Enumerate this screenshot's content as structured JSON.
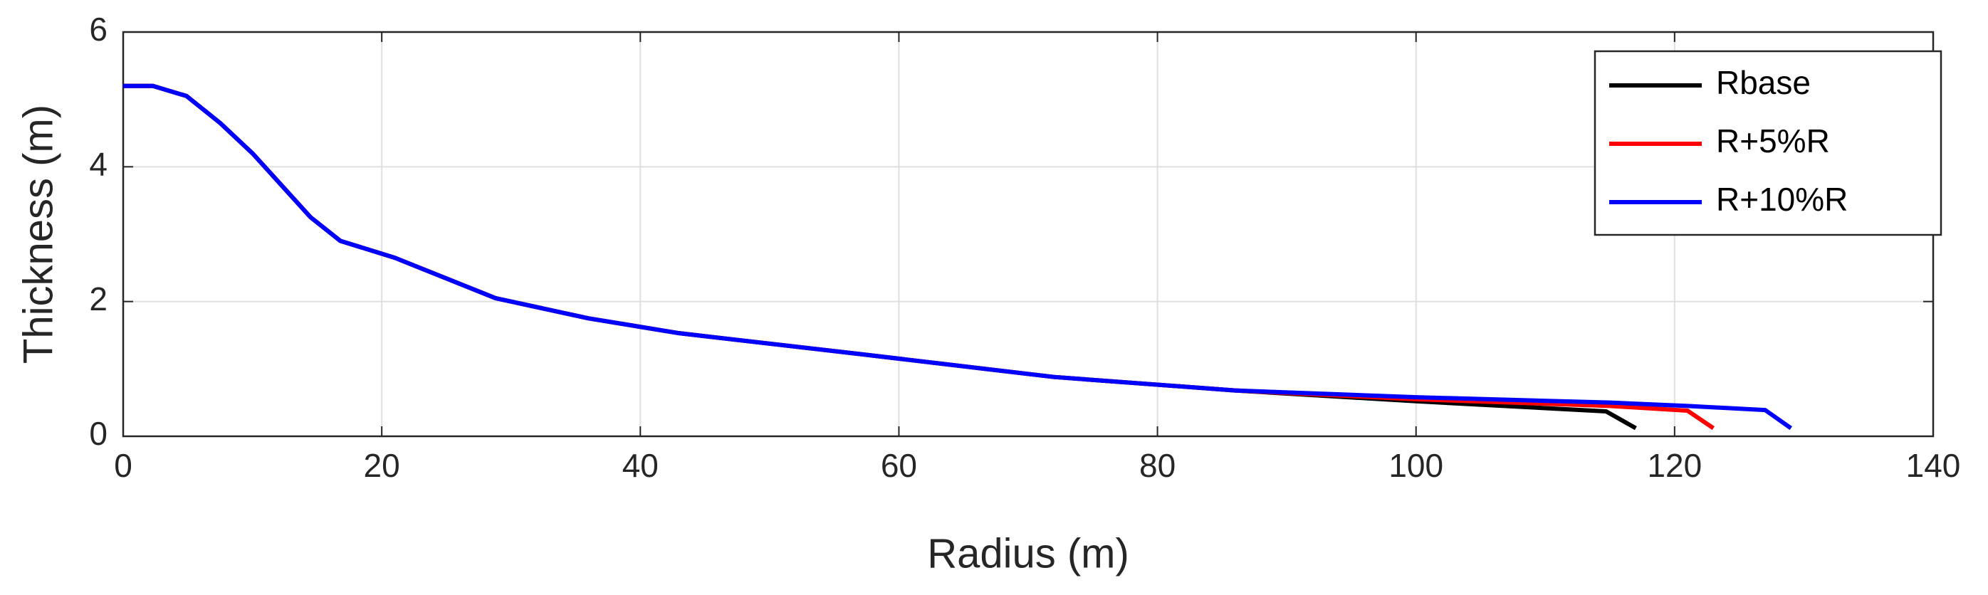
{
  "chart_data": {
    "type": "line",
    "xlabel": "Radius (m)",
    "ylabel": "Thickness (m)",
    "xlim": [
      0,
      140
    ],
    "xticks": [
      0,
      20,
      40,
      60,
      80,
      100,
      120,
      140
    ],
    "ylim": [
      0,
      6
    ],
    "yticks": [
      0,
      2,
      4,
      6
    ],
    "grid": true,
    "legend": "upper right",
    "series": [
      {
        "name": "Rbase",
        "color": "#000000",
        "x": [
          0,
          2.3,
          4.9,
          7.5,
          10,
          14.5,
          16.8,
          21,
          28.8,
          36,
          43,
          57,
          72,
          86,
          100,
          114.7,
          117
        ],
        "values": [
          5.2,
          5.2,
          5.05,
          4.65,
          4.2,
          3.25,
          2.9,
          2.65,
          2.05,
          1.75,
          1.53,
          1.22,
          0.88,
          0.68,
          0.52,
          0.37,
          0.12
        ]
      },
      {
        "name": "R+5%R",
        "color": "#ff0000",
        "x": [
          0,
          2.3,
          4.9,
          7.5,
          10,
          14.5,
          16.8,
          21,
          28.8,
          36,
          43,
          57,
          72,
          86,
          100,
          115,
          121,
          123
        ],
        "values": [
          5.2,
          5.2,
          5.05,
          4.65,
          4.2,
          3.25,
          2.9,
          2.65,
          2.05,
          1.75,
          1.53,
          1.22,
          0.88,
          0.68,
          0.55,
          0.45,
          0.38,
          0.12
        ]
      },
      {
        "name": "R+10%R",
        "color": "#0000ff",
        "x": [
          0,
          2.3,
          4.9,
          7.5,
          10,
          14.5,
          16.8,
          21,
          28.8,
          36,
          43,
          57,
          72,
          86,
          100,
          115,
          121,
          127,
          129
        ],
        "values": [
          5.2,
          5.2,
          5.05,
          4.65,
          4.2,
          3.25,
          2.9,
          2.65,
          2.05,
          1.75,
          1.53,
          1.22,
          0.88,
          0.68,
          0.58,
          0.5,
          0.45,
          0.39,
          0.12
        ]
      }
    ]
  }
}
